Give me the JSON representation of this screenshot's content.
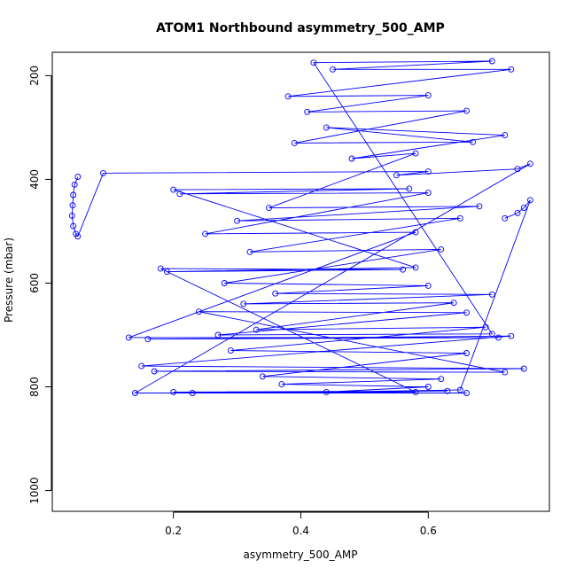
{
  "chart_data": {
    "type": "line",
    "title": "ATOM1 Northbound asymmetry_500_AMP",
    "xlabel": "asymmetry_500_AMP",
    "ylabel": "Pressure (mbar)",
    "xlim": [
      0.01,
      0.79
    ],
    "ylim": [
      1040,
      155
    ],
    "y_reversed": true,
    "x_ticks": [
      0.2,
      0.4,
      0.6
    ],
    "x_tick_labels": [
      "0.2",
      "0.4",
      "0.6"
    ],
    "y_ticks": [
      200,
      400,
      600,
      800,
      1000
    ],
    "y_tick_labels": [
      "200",
      "400",
      "600",
      "800",
      "1000"
    ],
    "grid": false,
    "legend": "none",
    "series": [
      {
        "color": "#0000ff",
        "marker": "open-circle",
        "line": true,
        "points": [
          [
            0.05,
            395
          ],
          [
            0.045,
            410
          ],
          [
            0.043,
            430
          ],
          [
            0.042,
            450
          ],
          [
            0.041,
            470
          ],
          [
            0.043,
            490
          ],
          [
            0.047,
            505
          ],
          [
            0.05,
            510
          ],
          [
            0.09,
            388
          ],
          [
            0.6,
            385
          ],
          [
            0.55,
            392
          ],
          [
            0.74,
            380
          ],
          [
            0.76,
            370
          ],
          [
            0.14,
            812
          ],
          [
            0.66,
            812
          ],
          [
            0.2,
            810
          ],
          [
            0.63,
            808
          ],
          [
            0.23,
            812
          ],
          [
            0.58,
            810
          ],
          [
            0.18,
            572
          ],
          [
            0.56,
            574
          ],
          [
            0.19,
            578
          ],
          [
            0.58,
            570
          ],
          [
            0.2,
            420
          ],
          [
            0.57,
            418
          ],
          [
            0.21,
            428
          ],
          [
            0.6,
            426
          ],
          [
            0.25,
            505
          ],
          [
            0.58,
            502
          ],
          [
            0.13,
            705
          ],
          [
            0.71,
            705
          ],
          [
            0.16,
            708
          ],
          [
            0.73,
            702
          ],
          [
            0.15,
            760
          ],
          [
            0.75,
            765
          ],
          [
            0.17,
            770
          ],
          [
            0.72,
            772
          ],
          [
            0.24,
            655
          ],
          [
            0.66,
            657
          ],
          [
            0.27,
            700
          ],
          [
            0.7,
            698
          ],
          [
            0.42,
            175
          ],
          [
            0.7,
            172
          ],
          [
            0.45,
            188
          ],
          [
            0.73,
            188
          ],
          [
            0.38,
            240
          ],
          [
            0.6,
            238
          ],
          [
            0.41,
            270
          ],
          [
            0.66,
            268
          ],
          [
            0.39,
            330
          ],
          [
            0.67,
            328
          ],
          [
            0.44,
            300
          ],
          [
            0.72,
            315
          ],
          [
            0.48,
            360
          ],
          [
            0.58,
            350
          ],
          [
            0.35,
            455
          ],
          [
            0.68,
            452
          ],
          [
            0.3,
            480
          ],
          [
            0.65,
            475
          ],
          [
            0.32,
            540
          ],
          [
            0.62,
            535
          ],
          [
            0.28,
            600
          ],
          [
            0.6,
            605
          ],
          [
            0.36,
            620
          ],
          [
            0.7,
            622
          ],
          [
            0.31,
            640
          ],
          [
            0.64,
            638
          ],
          [
            0.33,
            690
          ],
          [
            0.69,
            685
          ],
          [
            0.29,
            730
          ],
          [
            0.66,
            735
          ],
          [
            0.34,
            780
          ],
          [
            0.62,
            785
          ],
          [
            0.37,
            795
          ],
          [
            0.6,
            800
          ],
          [
            0.44,
            810
          ],
          [
            0.65,
            806
          ],
          [
            0.76,
            440
          ],
          [
            0.75,
            455
          ],
          [
            0.74,
            465
          ],
          [
            0.72,
            475
          ]
        ]
      }
    ]
  }
}
